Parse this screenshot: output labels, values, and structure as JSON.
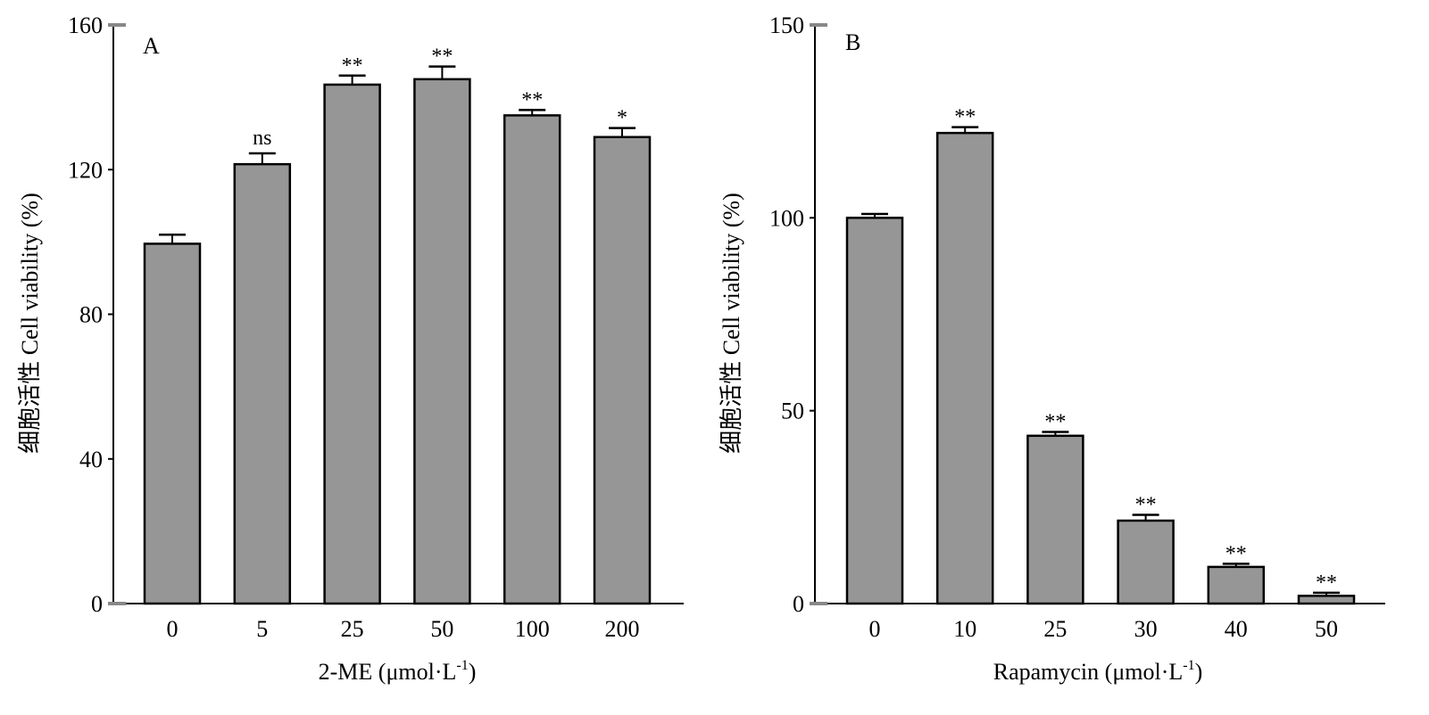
{
  "chart_data": [
    {
      "type": "bar",
      "panel_label": "A",
      "categories": [
        "0",
        "5",
        "25",
        "50",
        "100",
        "200"
      ],
      "values": [
        99.5,
        121.5,
        143.5,
        145,
        135,
        129
      ],
      "errors": [
        2.5,
        3.0,
        2.5,
        3.5,
        1.5,
        2.5
      ],
      "significance": [
        "",
        "ns",
        "**",
        "**",
        "**",
        "*"
      ],
      "ylim": [
        0,
        160
      ],
      "yticks": [
        0,
        40,
        80,
        120,
        160
      ],
      "xlabel": "2-ME (μmol·L",
      "xlabel_sup": "-1",
      "xlabel_end": ")",
      "ylabel": "细胞活性 Cell viability (%)",
      "bar_color": "#969696",
      "grid": false
    },
    {
      "type": "bar",
      "panel_label": "B",
      "categories": [
        "0",
        "10",
        "25",
        "30",
        "40",
        "50"
      ],
      "values": [
        100,
        122,
        43.5,
        21.5,
        9.5,
        2
      ],
      "errors": [
        1.0,
        1.5,
        1.0,
        1.5,
        0.8,
        0.8
      ],
      "significance": [
        "",
        "**",
        "**",
        "**",
        "**",
        "**"
      ],
      "ylim": [
        0,
        150
      ],
      "yticks": [
        0,
        50,
        100,
        150
      ],
      "xlabel": "Rapamycin (μmol·L",
      "xlabel_sup": "-1",
      "xlabel_end": ")",
      "ylabel": "细胞活性 Cell viability (%)",
      "bar_color": "#969696",
      "grid": false
    }
  ]
}
